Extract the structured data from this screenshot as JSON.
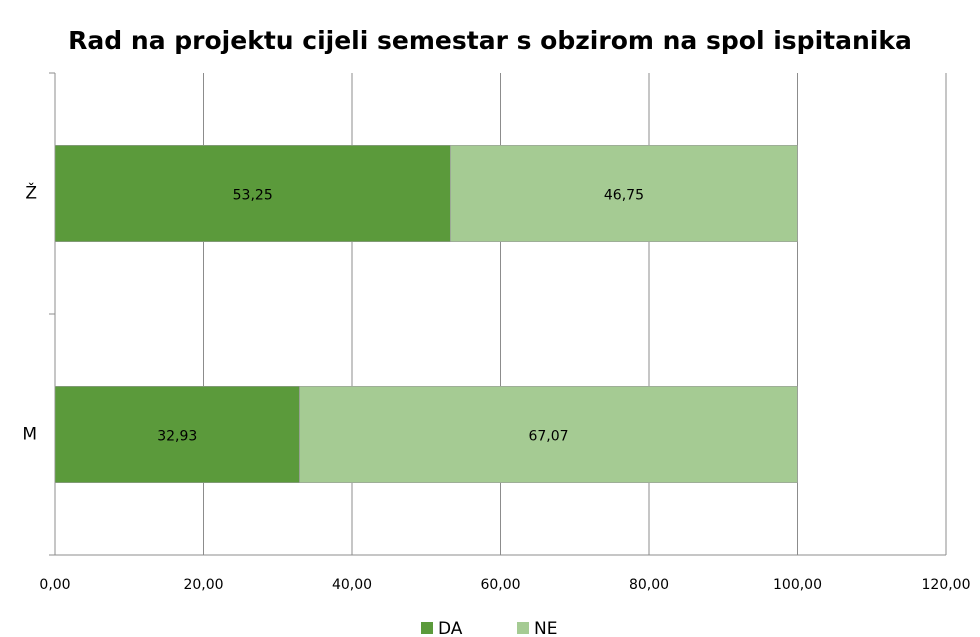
{
  "chart_data": {
    "type": "bar",
    "orientation": "horizontal",
    "stacked": true,
    "title": "Rad na projektu cijeli semestar s obzirom na spol ispitanika",
    "categories": [
      "Ž",
      "M"
    ],
    "series": [
      {
        "name": "DA",
        "color": "#5b9a3b",
        "values": [
          53.25,
          32.93
        ],
        "value_labels": [
          "53,25",
          "32,93"
        ]
      },
      {
        "name": "NE",
        "color": "#a5cb93",
        "values": [
          46.75,
          67.07
        ],
        "value_labels": [
          "46,75",
          "67,07"
        ]
      }
    ],
    "xlim": [
      0,
      120
    ],
    "xticks": [
      {
        "value": 0,
        "label": "0,00"
      },
      {
        "value": 20,
        "label": "20,00"
      },
      {
        "value": 40,
        "label": "40,00"
      },
      {
        "value": 60,
        "label": "60,00"
      },
      {
        "value": 80,
        "label": "80,00"
      },
      {
        "value": 100,
        "label": "100,00"
      },
      {
        "value": 120,
        "label": "120,00"
      }
    ],
    "grid": true,
    "legend": "bottom"
  }
}
